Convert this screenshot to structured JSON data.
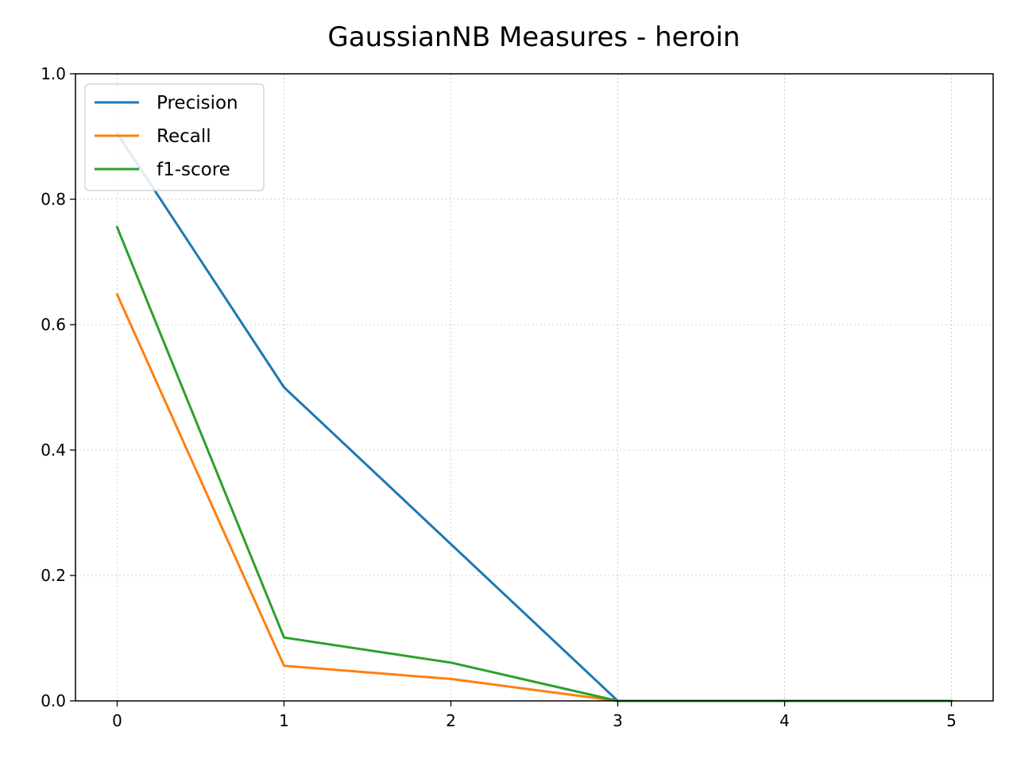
{
  "chart_data": {
    "type": "line",
    "title": "GaussianNB Measures - heroin",
    "xlabel": "",
    "ylabel": "",
    "x": [
      0,
      1,
      2,
      3,
      4,
      5
    ],
    "xlim": [
      -0.25,
      5.25
    ],
    "ylim": [
      0,
      1
    ],
    "x_ticks": [
      "0",
      "1",
      "2",
      "3",
      "4",
      "5"
    ],
    "y_ticks": [
      "0.0",
      "0.2",
      "0.4",
      "0.6",
      "0.8",
      "1.0"
    ],
    "grid": true,
    "legend_position": "top-left",
    "series": [
      {
        "name": "Precision",
        "color": "#1f77b4",
        "values": [
          0.905,
          0.5,
          0.25,
          0.0,
          0.0,
          0.0
        ]
      },
      {
        "name": "Recall",
        "color": "#ff7f0e",
        "values": [
          0.648,
          0.056,
          0.035,
          0.0,
          0.0,
          0.0
        ]
      },
      {
        "name": "f1-score",
        "color": "#2ca02c",
        "values": [
          0.755,
          0.101,
          0.061,
          0.0,
          0.0,
          0.0
        ]
      }
    ]
  }
}
